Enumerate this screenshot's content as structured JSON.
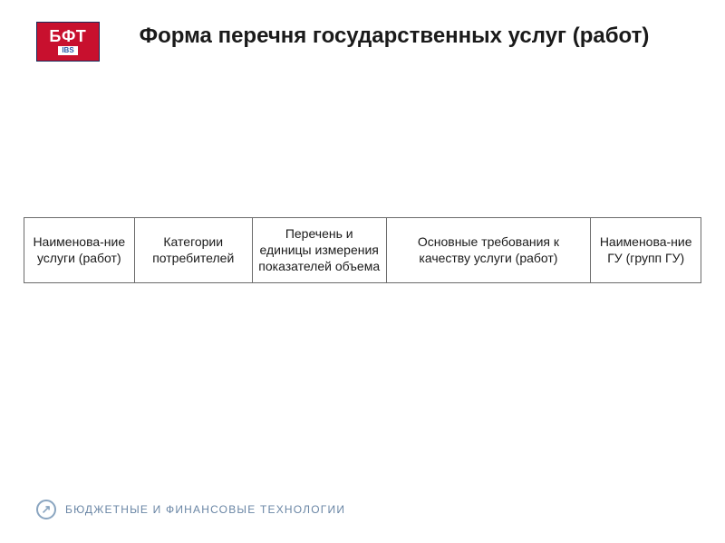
{
  "logo": {
    "main_text": "БФТ",
    "accent_text": "IBS",
    "background_color": "#c8102e",
    "text_color": "#ffffff",
    "accent_bg_color": "#ffffff",
    "accent_text_color": "#2e5aa8",
    "border_color": "#1a2a5a"
  },
  "title": "Форма перечня государственных услуг (работ)",
  "table": {
    "type": "table",
    "border_color": "#6b6b6b",
    "cell_bg": "#ffffff",
    "cell_fontsize": 14,
    "cell_color": "#1a1a1a",
    "columns": [
      {
        "label": "Наименова-ние услуги (работ)",
        "width": "14%"
      },
      {
        "label": "Категории потребителей",
        "width": "15%"
      },
      {
        "label": "Перечень и единицы измерения показателей объема",
        "width": "17%"
      },
      {
        "label": "Основные требования к качеству услуги (работ)",
        "width": "26%"
      },
      {
        "label": "Наименова-ние ГУ (групп ГУ)",
        "width": "14%"
      }
    ]
  },
  "footer": {
    "icon_glyph": "↗",
    "text": "БЮДЖЕТНЫЕ И ФИНАНСОВЫЕ ТЕХНОЛОГИИ",
    "text_color": "#6a86a5",
    "icon_color": "#8aa5c0"
  }
}
